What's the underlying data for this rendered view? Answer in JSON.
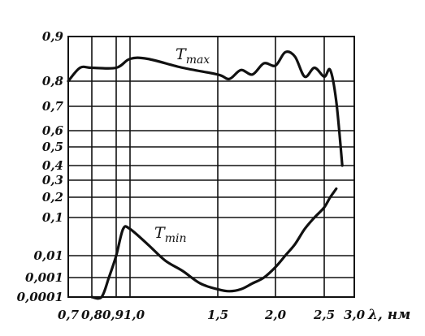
{
  "chart_data": {
    "type": "line",
    "xlabel": "λ, нм",
    "x_ticks": [
      {
        "label": "0,7",
        "value": 0.7
      },
      {
        "label": "0,8",
        "value": 0.8
      },
      {
        "label": "0,9",
        "value": 0.9
      },
      {
        "label": "1,0",
        "value": 1.0
      },
      {
        "label": "1,5",
        "value": 1.5
      },
      {
        "label": "2,0",
        "value": 2.0
      },
      {
        "label": "2,5",
        "value": 2.5
      },
      {
        "label": "3,0",
        "value": 3.0
      }
    ],
    "y_ticks": [
      "0,0001",
      "0,001",
      "0,01",
      "0,1",
      "0,2",
      "0,3",
      "0,4",
      "0,5",
      "0,6",
      "0,7",
      "0,8",
      "0,9"
    ],
    "series": [
      {
        "name": "T",
        "name_sub": "max",
        "x": [
          0.7,
          0.75,
          0.8,
          0.9,
          1.0,
          1.1,
          1.3,
          1.5,
          1.6,
          1.7,
          1.8,
          1.9,
          2.0,
          2.1,
          2.2,
          2.3,
          2.4,
          2.5,
          2.6,
          2.7,
          2.8
        ],
        "y": [
          0.8,
          0.83,
          0.83,
          0.83,
          0.85,
          0.85,
          0.83,
          0.815,
          0.805,
          0.825,
          0.815,
          0.84,
          0.835,
          0.865,
          0.855,
          0.81,
          0.83,
          0.81,
          0.825,
          0.72,
          0.4
        ]
      },
      {
        "name": "T",
        "name_sub": "min",
        "x": [
          0.8,
          0.84,
          0.87,
          0.9,
          0.95,
          1.0,
          1.1,
          1.2,
          1.3,
          1.4,
          1.5,
          1.6,
          1.7,
          1.8,
          1.9,
          2.0,
          2.1,
          2.2,
          2.3,
          2.4,
          2.5,
          2.6,
          2.7
        ],
        "y": [
          "0,0001",
          "0,0001",
          "0,001",
          "0,01",
          0.05,
          0.05,
          0.02,
          0.006,
          0.002,
          0.0005,
          0.00025,
          0.0002,
          0.00025,
          0.0005,
          0.001,
          0.003,
          0.01,
          0.02,
          0.05,
          0.1,
          0.15,
          0.2,
          0.25
        ]
      }
    ],
    "grid": true,
    "legend": "none"
  }
}
